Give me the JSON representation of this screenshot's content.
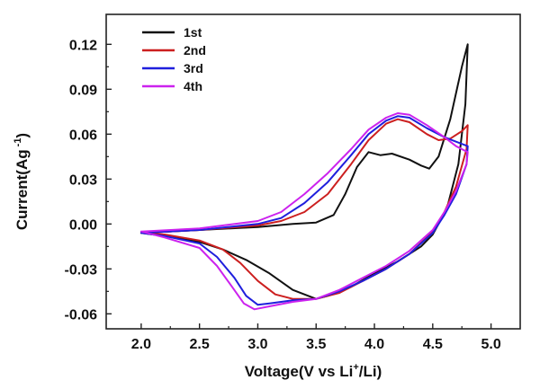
{
  "chart_data": {
    "type": "line",
    "title": "",
    "xlabel": {
      "main": "Voltage(V vs Li",
      "sup": "+",
      "tail": "/Li)"
    },
    "ylabel": {
      "main": "Current(Ag",
      "sup": " -1",
      "tail": ")"
    },
    "xlim": [
      1.7,
      5.25
    ],
    "ylim": [
      -0.07,
      0.14
    ],
    "x_ticks": [
      2.0,
      2.5,
      3.0,
      3.5,
      4.0,
      4.5,
      5.0
    ],
    "y_ticks": [
      -0.06,
      -0.03,
      0.0,
      0.03,
      0.06,
      0.09,
      0.12
    ],
    "x_tick_labels": [
      "2.0",
      "2.5",
      "3.0",
      "3.5",
      "4.0",
      "4.5",
      "5.0"
    ],
    "y_tick_labels": [
      "-0.06",
      "-0.03",
      "0.00",
      "0.03",
      "0.06",
      "0.09",
      "0.12"
    ],
    "legend_position": "top-left",
    "series": [
      {
        "name": "1st",
        "color": "#111111",
        "points": [
          [
            2.0,
            -0.006
          ],
          [
            2.5,
            -0.004
          ],
          [
            3.0,
            -0.002
          ],
          [
            3.3,
            0.0
          ],
          [
            3.5,
            0.001
          ],
          [
            3.65,
            0.006
          ],
          [
            3.75,
            0.02
          ],
          [
            3.85,
            0.038
          ],
          [
            3.95,
            0.048
          ],
          [
            4.05,
            0.046
          ],
          [
            4.15,
            0.047
          ],
          [
            4.3,
            0.043
          ],
          [
            4.4,
            0.039
          ],
          [
            4.47,
            0.037
          ],
          [
            4.55,
            0.045
          ],
          [
            4.65,
            0.07
          ],
          [
            4.75,
            0.105
          ],
          [
            4.8,
            0.12
          ],
          [
            4.78,
            0.08
          ],
          [
            4.72,
            0.04
          ],
          [
            4.62,
            0.01
          ],
          [
            4.5,
            -0.007
          ],
          [
            4.4,
            -0.015
          ],
          [
            4.2,
            -0.025
          ],
          [
            4.0,
            -0.033
          ],
          [
            3.8,
            -0.042
          ],
          [
            3.6,
            -0.048
          ],
          [
            3.5,
            -0.05
          ],
          [
            3.3,
            -0.044
          ],
          [
            3.1,
            -0.033
          ],
          [
            2.9,
            -0.024
          ],
          [
            2.7,
            -0.017
          ],
          [
            2.5,
            -0.012
          ],
          [
            2.2,
            -0.008
          ],
          [
            2.0,
            -0.006
          ]
        ]
      },
      {
        "name": "2nd",
        "color": "#cc1f1f",
        "points": [
          [
            2.0,
            -0.006
          ],
          [
            2.5,
            -0.004
          ],
          [
            3.0,
            -0.001
          ],
          [
            3.2,
            0.002
          ],
          [
            3.4,
            0.008
          ],
          [
            3.6,
            0.02
          ],
          [
            3.8,
            0.04
          ],
          [
            3.95,
            0.056
          ],
          [
            4.1,
            0.067
          ],
          [
            4.2,
            0.07
          ],
          [
            4.3,
            0.068
          ],
          [
            4.45,
            0.06
          ],
          [
            4.55,
            0.056
          ],
          [
            4.65,
            0.057
          ],
          [
            4.75,
            0.062
          ],
          [
            4.8,
            0.066
          ],
          [
            4.79,
            0.05
          ],
          [
            4.7,
            0.025
          ],
          [
            4.6,
            0.008
          ],
          [
            4.5,
            -0.005
          ],
          [
            4.3,
            -0.02
          ],
          [
            4.1,
            -0.03
          ],
          [
            3.9,
            -0.038
          ],
          [
            3.7,
            -0.046
          ],
          [
            3.5,
            -0.05
          ],
          [
            3.3,
            -0.05
          ],
          [
            3.15,
            -0.047
          ],
          [
            3.0,
            -0.038
          ],
          [
            2.85,
            -0.026
          ],
          [
            2.7,
            -0.017
          ],
          [
            2.5,
            -0.011
          ],
          [
            2.2,
            -0.007
          ],
          [
            2.0,
            -0.006
          ]
        ]
      },
      {
        "name": "3rd",
        "color": "#1f1fdd",
        "points": [
          [
            2.0,
            -0.006
          ],
          [
            2.5,
            -0.004
          ],
          [
            3.0,
            0.0
          ],
          [
            3.2,
            0.004
          ],
          [
            3.4,
            0.014
          ],
          [
            3.6,
            0.028
          ],
          [
            3.8,
            0.046
          ],
          [
            3.95,
            0.06
          ],
          [
            4.1,
            0.069
          ],
          [
            4.2,
            0.072
          ],
          [
            4.3,
            0.071
          ],
          [
            4.45,
            0.064
          ],
          [
            4.6,
            0.058
          ],
          [
            4.7,
            0.055
          ],
          [
            4.8,
            0.052
          ],
          [
            4.79,
            0.04
          ],
          [
            4.7,
            0.02
          ],
          [
            4.6,
            0.006
          ],
          [
            4.5,
            -0.006
          ],
          [
            4.3,
            -0.02
          ],
          [
            4.1,
            -0.03
          ],
          [
            3.9,
            -0.038
          ],
          [
            3.7,
            -0.045
          ],
          [
            3.5,
            -0.05
          ],
          [
            3.3,
            -0.051
          ],
          [
            3.1,
            -0.053
          ],
          [
            3.0,
            -0.054
          ],
          [
            2.9,
            -0.048
          ],
          [
            2.8,
            -0.036
          ],
          [
            2.65,
            -0.022
          ],
          [
            2.5,
            -0.013
          ],
          [
            2.2,
            -0.008
          ],
          [
            2.0,
            -0.006
          ]
        ]
      },
      {
        "name": "4th",
        "color": "#cc22ee",
        "points": [
          [
            2.0,
            -0.005
          ],
          [
            2.5,
            -0.003
          ],
          [
            3.0,
            0.002
          ],
          [
            3.2,
            0.008
          ],
          [
            3.4,
            0.02
          ],
          [
            3.6,
            0.034
          ],
          [
            3.8,
            0.05
          ],
          [
            3.95,
            0.063
          ],
          [
            4.1,
            0.071
          ],
          [
            4.2,
            0.074
          ],
          [
            4.3,
            0.073
          ],
          [
            4.45,
            0.066
          ],
          [
            4.6,
            0.058
          ],
          [
            4.7,
            0.052
          ],
          [
            4.8,
            0.048
          ],
          [
            4.79,
            0.04
          ],
          [
            4.7,
            0.022
          ],
          [
            4.6,
            0.008
          ],
          [
            4.5,
            -0.004
          ],
          [
            4.3,
            -0.018
          ],
          [
            4.1,
            -0.028
          ],
          [
            3.9,
            -0.036
          ],
          [
            3.7,
            -0.044
          ],
          [
            3.5,
            -0.05
          ],
          [
            3.3,
            -0.052
          ],
          [
            3.1,
            -0.055
          ],
          [
            2.97,
            -0.057
          ],
          [
            2.88,
            -0.053
          ],
          [
            2.78,
            -0.042
          ],
          [
            2.65,
            -0.028
          ],
          [
            2.5,
            -0.016
          ],
          [
            2.2,
            -0.009
          ],
          [
            2.0,
            -0.005
          ]
        ]
      }
    ]
  }
}
